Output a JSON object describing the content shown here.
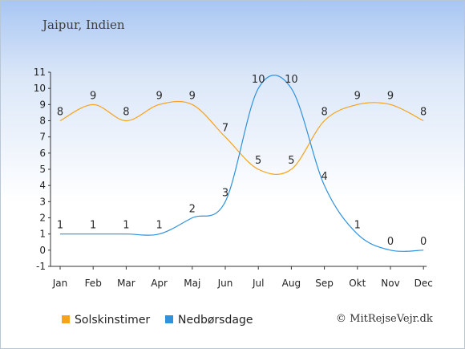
{
  "place": "Jaipur, Indien",
  "credit": "© MitRejseVejr.dk",
  "chart_data": {
    "type": "line",
    "categories": [
      "Jan",
      "Feb",
      "Mar",
      "Apr",
      "Maj",
      "Jun",
      "Jul",
      "Aug",
      "Sep",
      "Okt",
      "Nov",
      "Dec"
    ],
    "ylim": [
      -1,
      11
    ],
    "yticks": [
      -1,
      0,
      1,
      2,
      3,
      4,
      5,
      6,
      7,
      8,
      9,
      10,
      11
    ],
    "grid": false,
    "legend": "bottom",
    "series": [
      {
        "name": "Solskinstimer",
        "color": "#f7a21b",
        "values": [
          8,
          9,
          8,
          9,
          9,
          7,
          5,
          5,
          8,
          9,
          9,
          8
        ],
        "labels": [
          "8",
          "9",
          "8",
          "9",
          "9",
          "7",
          "5",
          "5",
          "8",
          "9",
          "9",
          "8"
        ]
      },
      {
        "name": "Nedbørsdage",
        "color": "#2f92de",
        "values": [
          1,
          1,
          1,
          1,
          2,
          3,
          10,
          10,
          4,
          1,
          0,
          0
        ],
        "labels": [
          "1",
          "1",
          "1",
          "1",
          "2",
          "3",
          "10",
          "10",
          "4",
          "1",
          "0",
          "0"
        ]
      }
    ]
  }
}
